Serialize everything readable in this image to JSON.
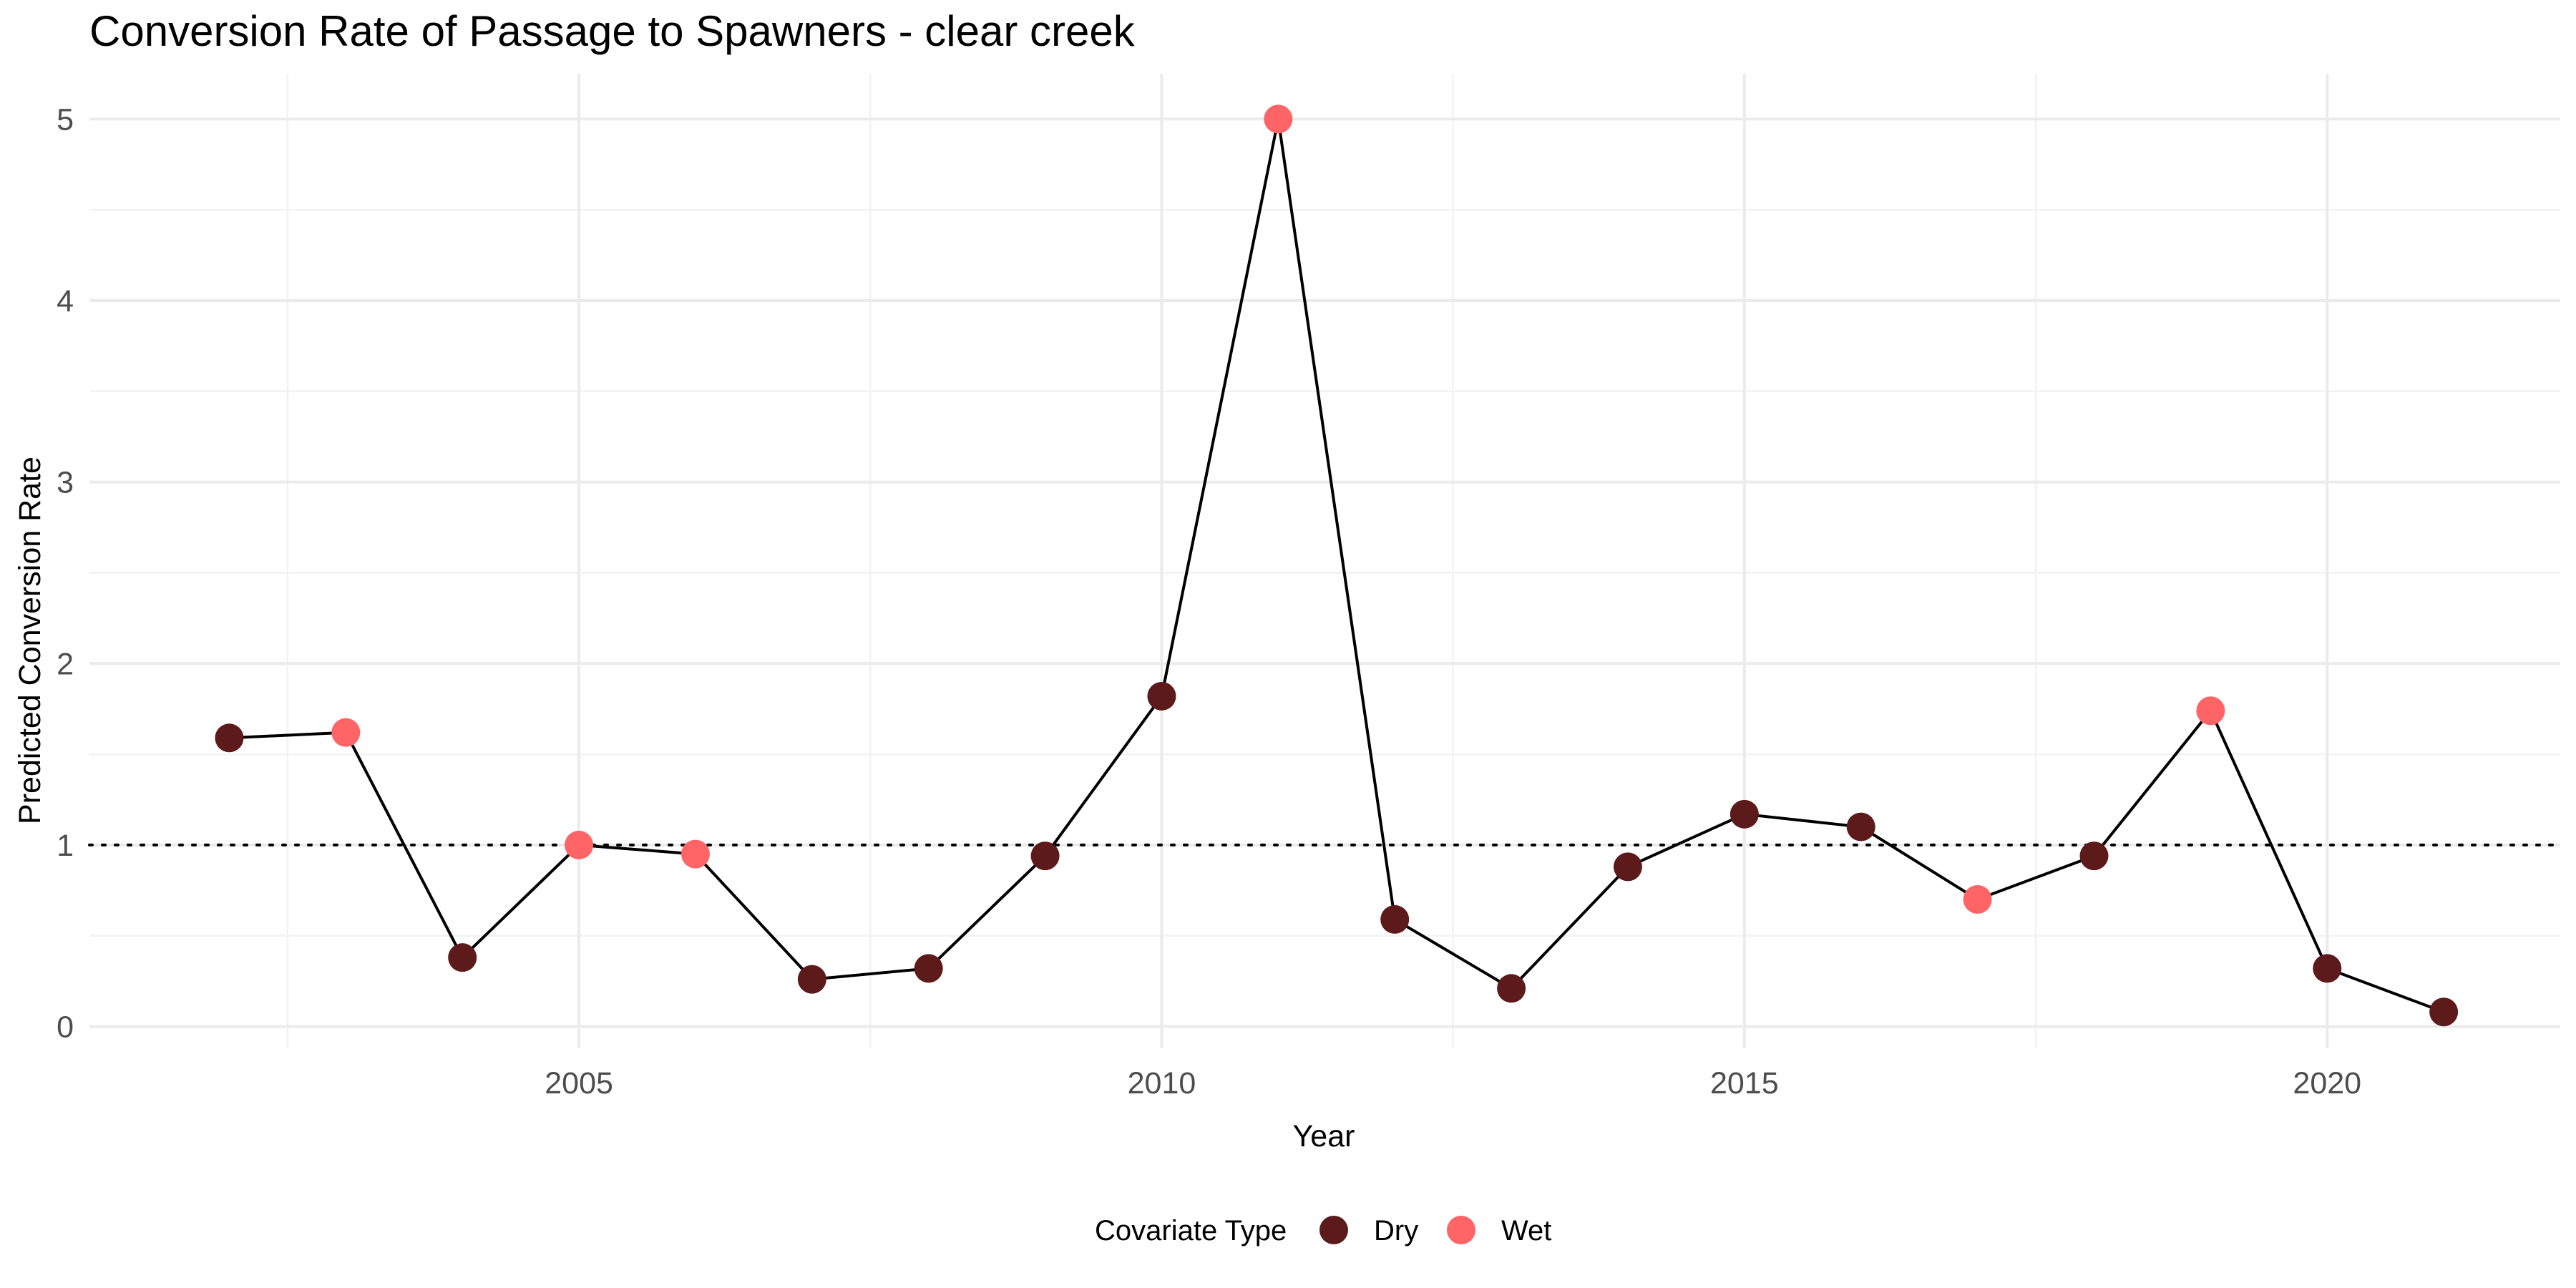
{
  "chart_data": {
    "type": "line",
    "title": "Conversion Rate of Passage to Spawners - clear creek",
    "xlabel": "Year",
    "ylabel": "Predicted Conversion Rate",
    "xlim": [
      2000.8,
      2022.0
    ],
    "ylim": [
      -0.12,
      5.25
    ],
    "x_ticks": [
      2005,
      2010,
      2015,
      2020
    ],
    "x_tick_labels": [
      "2005",
      "2010",
      "2015",
      "2020"
    ],
    "y_ticks": [
      0,
      1,
      2,
      3,
      4,
      5
    ],
    "y_tick_labels": [
      "0",
      "1",
      "2",
      "3",
      "4",
      "5"
    ],
    "reference_line": {
      "y": 1,
      "style": "dotted"
    },
    "grid": true,
    "legend": {
      "position": "bottom",
      "title": "Covariate Type",
      "entries": [
        {
          "label": "Dry",
          "color": "#5c1a1b"
        },
        {
          "label": "Wet",
          "color": "#ff6466"
        }
      ]
    },
    "line_color": "#000000",
    "points": [
      {
        "year": 2002,
        "value": 1.59,
        "type": "Dry"
      },
      {
        "year": 2003,
        "value": 1.62,
        "type": "Wet"
      },
      {
        "year": 2004,
        "value": 0.38,
        "type": "Dry"
      },
      {
        "year": 2005,
        "value": 1.0,
        "type": "Wet"
      },
      {
        "year": 2006,
        "value": 0.95,
        "type": "Wet"
      },
      {
        "year": 2007,
        "value": 0.26,
        "type": "Dry"
      },
      {
        "year": 2008,
        "value": 0.32,
        "type": "Dry"
      },
      {
        "year": 2009,
        "value": 0.94,
        "type": "Dry"
      },
      {
        "year": 2010,
        "value": 1.82,
        "type": "Dry"
      },
      {
        "year": 2011,
        "value": 5.0,
        "type": "Wet"
      },
      {
        "year": 2012,
        "value": 0.59,
        "type": "Dry"
      },
      {
        "year": 2013,
        "value": 0.21,
        "type": "Dry"
      },
      {
        "year": 2014,
        "value": 0.88,
        "type": "Dry"
      },
      {
        "year": 2015,
        "value": 1.17,
        "type": "Dry"
      },
      {
        "year": 2016,
        "value": 1.1,
        "type": "Dry"
      },
      {
        "year": 2017,
        "value": 0.7,
        "type": "Wet"
      },
      {
        "year": 2018,
        "value": 0.94,
        "type": "Dry"
      },
      {
        "year": 2019,
        "value": 1.74,
        "type": "Wet"
      },
      {
        "year": 2020,
        "value": 0.32,
        "type": "Dry"
      },
      {
        "year": 2021,
        "value": 0.08,
        "type": "Dry"
      }
    ]
  }
}
